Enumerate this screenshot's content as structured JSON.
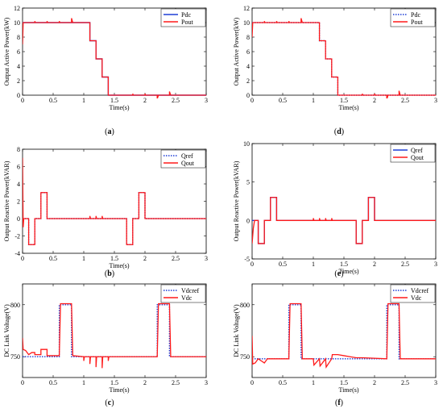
{
  "colors": {
    "ref": "#1f3fd6",
    "out": "#ff1a1a",
    "axis": "#000000",
    "frame": "#000000"
  },
  "chart_data": [
    {
      "panel": "(a)",
      "type": "line",
      "xlabel": "Time(s)",
      "ylabel": "Output Active Power(kW)",
      "xlim": [
        0,
        3
      ],
      "ylim": [
        0,
        12
      ],
      "xticks": [
        "0",
        "0.5",
        "1",
        "1.5",
        "2",
        "2.5",
        "3"
      ],
      "yticks": [
        "0",
        "2",
        "4",
        "6",
        "8",
        "10",
        "12"
      ],
      "legend": {
        "placement": "top-right"
      },
      "series": [
        {
          "name": "Pdc",
          "style": "solid",
          "color": "ref",
          "x": [
            0,
            1.1,
            1.1,
            1.2,
            1.2,
            1.3,
            1.3,
            1.4,
            1.4,
            3
          ],
          "y": [
            10,
            10,
            7.5,
            7.5,
            5,
            5,
            2.5,
            2.5,
            0,
            0
          ]
        },
        {
          "name": "Pout",
          "style": "solid",
          "color": "out",
          "x": [
            0,
            0.01,
            0.02,
            0.2,
            0.2,
            0.21,
            0.4,
            0.4,
            0.41,
            0.6,
            0.6,
            0.61,
            0.8,
            0.8,
            0.82,
            1.1,
            1.1,
            1.2,
            1.2,
            1.3,
            1.3,
            1.4,
            1.4,
            1.8,
            1.8,
            1.81,
            2.0,
            2.0,
            2.01,
            2.2,
            2.2,
            2.22,
            2.4,
            2.4,
            2.42,
            3
          ],
          "y": [
            7,
            10,
            10,
            10,
            10.2,
            10,
            10,
            10.2,
            10,
            10,
            10.2,
            10,
            10,
            10.6,
            10,
            10,
            7.5,
            7.5,
            5,
            5,
            2.5,
            2.5,
            0,
            0,
            0.2,
            0,
            0,
            0.2,
            0,
            0,
            -0.5,
            0,
            0,
            0.5,
            0,
            0
          ]
        }
      ]
    },
    {
      "panel": "(d)",
      "type": "line",
      "xlabel": "Time(s)",
      "ylabel": "Output Active Power(kW)",
      "xlim": [
        0,
        3
      ],
      "ylim": [
        0,
        12
      ],
      "xticks": [
        "0",
        "0.5",
        "1",
        "1.5",
        "2",
        "2.5",
        "3"
      ],
      "yticks": [
        "0",
        "2",
        "4",
        "6",
        "8",
        "10",
        "12"
      ],
      "legend": {
        "placement": "top-right"
      },
      "series": [
        {
          "name": "Pdc",
          "style": "dotted",
          "color": "ref",
          "x": [
            0,
            1.1,
            1.1,
            1.2,
            1.2,
            1.3,
            1.3,
            1.4,
            1.4,
            3
          ],
          "y": [
            10,
            10,
            7.5,
            7.5,
            5,
            5,
            2.5,
            2.5,
            0,
            0
          ]
        },
        {
          "name": "Pout",
          "style": "solid",
          "color": "out",
          "x": [
            0,
            0.01,
            0.02,
            0.2,
            0.2,
            0.21,
            0.4,
            0.4,
            0.41,
            0.6,
            0.6,
            0.61,
            0.8,
            0.8,
            0.82,
            1.1,
            1.1,
            1.2,
            1.2,
            1.3,
            1.3,
            1.4,
            1.4,
            1.8,
            1.8,
            1.81,
            2.0,
            2.0,
            2.01,
            2.2,
            2.2,
            2.22,
            2.4,
            2.4,
            2.42,
            3
          ],
          "y": [
            8,
            10,
            10,
            10,
            10.2,
            10,
            10,
            10.2,
            10,
            10,
            10.2,
            10,
            10,
            10.6,
            10,
            10,
            7.5,
            7.5,
            5,
            5,
            2.5,
            2.5,
            0,
            0,
            0.2,
            0,
            0,
            0.2,
            0,
            0,
            -0.6,
            0,
            0,
            0.6,
            0,
            0
          ]
        }
      ]
    },
    {
      "panel": "(b)",
      "type": "line",
      "xlabel": "Time(s)",
      "ylabel": "Output Reactive Power(kVAR)",
      "xlim": [
        0,
        3
      ],
      "ylim": [
        -4,
        8
      ],
      "xticks": [
        "0",
        "0.5",
        "1",
        "1.5",
        "2",
        "2.5",
        "3"
      ],
      "yticks": [
        "-4",
        "-2",
        "0",
        "2",
        "4",
        "6",
        "8"
      ],
      "legend": {
        "placement": "top-right"
      },
      "series": [
        {
          "name": "Qref",
          "style": "dotted",
          "color": "ref",
          "x": [
            0,
            0.1,
            0.1,
            0.2,
            0.2,
            0.3,
            0.3,
            0.4,
            0.4,
            1.7,
            1.7,
            1.8,
            1.8,
            1.9,
            1.9,
            2.0,
            2.0,
            3
          ],
          "y": [
            0,
            0,
            -3,
            -3,
            0,
            0,
            3,
            3,
            0,
            0,
            -3,
            -3,
            0,
            0,
            3,
            3,
            0,
            0
          ]
        },
        {
          "name": "Qout",
          "style": "solid",
          "color": "out",
          "x": [
            0,
            0.01,
            0.02,
            0.04,
            0.1,
            0.1,
            0.2,
            0.2,
            0.3,
            0.3,
            0.4,
            0.4,
            1.1,
            1.1,
            1.11,
            1.2,
            1.2,
            1.21,
            1.3,
            1.3,
            1.31,
            1.7,
            1.7,
            1.8,
            1.8,
            1.9,
            1.9,
            2.0,
            2.0,
            3
          ],
          "y": [
            7,
            -1,
            0,
            0,
            0,
            -3,
            -3,
            0,
            0,
            3,
            3,
            0,
            0,
            0.3,
            0,
            0,
            0.3,
            0,
            0,
            0.3,
            0,
            0,
            -3,
            -3,
            0,
            0,
            3,
            3,
            0,
            0
          ]
        }
      ]
    },
    {
      "panel": "(e)",
      "type": "line",
      "xlabel": "Time(s)",
      "ylabel": "Output Reactive Power(kVAR)",
      "xlim": [
        0,
        3
      ],
      "ylim": [
        -5,
        10
      ],
      "xticks": [
        "0",
        "0.5",
        "1",
        "1.5",
        "2",
        "2.5",
        "3"
      ],
      "yticks": [
        "-5",
        "0",
        "5",
        "10"
      ],
      "legend": {
        "placement": "top-right"
      },
      "series": [
        {
          "name": "Qref",
          "style": "solid",
          "color": "ref",
          "x": [
            0,
            0.1,
            0.1,
            0.2,
            0.2,
            0.3,
            0.3,
            0.4,
            0.4,
            1.7,
            1.7,
            1.8,
            1.8,
            1.9,
            1.9,
            2.0,
            2.0,
            3
          ],
          "y": [
            0,
            0,
            -3,
            -3,
            0,
            0,
            3,
            3,
            0,
            0,
            -3,
            -3,
            0,
            0,
            3,
            3,
            0,
            0
          ]
        },
        {
          "name": "Qout",
          "style": "solid",
          "color": "out",
          "x": [
            0,
            0.02,
            0.04,
            0.1,
            0.1,
            0.2,
            0.2,
            0.3,
            0.3,
            0.4,
            0.4,
            1.0,
            1.0,
            1.01,
            1.1,
            1.1,
            1.11,
            1.2,
            1.2,
            1.21,
            1.3,
            1.3,
            1.31,
            1.7,
            1.7,
            1.8,
            1.8,
            1.9,
            1.9,
            2.0,
            2.0,
            3
          ],
          "y": [
            -3,
            -1,
            0,
            0,
            -3,
            -3,
            0,
            0,
            3,
            3,
            0,
            0,
            0.3,
            0,
            0,
            0.3,
            0,
            0,
            0.3,
            0,
            0,
            0.3,
            0,
            0,
            -3,
            -3,
            0,
            0,
            3,
            3,
            0,
            0
          ]
        }
      ]
    },
    {
      "panel": "(c)",
      "type": "line",
      "xlabel": "Time(s)",
      "ylabel": "DC Link Voltage(V)",
      "xlim": [
        0,
        3
      ],
      "ylim": [
        730,
        820
      ],
      "xticks": [
        "0",
        "0.5",
        "1",
        "1.5",
        "2",
        "2.5",
        "3"
      ],
      "yticks": [
        "750",
        "800"
      ],
      "legend": {
        "placement": "top-right"
      },
      "series": [
        {
          "name": "Vdcref",
          "style": "dotted",
          "color": "ref",
          "x": [
            0,
            0.6,
            0.6,
            0.8,
            0.8,
            2.2,
            2.2,
            2.4,
            2.4,
            3
          ],
          "y": [
            750,
            750,
            800,
            800,
            750,
            750,
            800,
            800,
            750,
            750
          ]
        },
        {
          "name": "Vdc",
          "style": "solid",
          "color": "out",
          "x": [
            0,
            0.01,
            0.05,
            0.1,
            0.15,
            0.2,
            0.2,
            0.3,
            0.3,
            0.4,
            0.4,
            0.6,
            0.62,
            0.8,
            0.82,
            1.0,
            1.0,
            1.01,
            1.1,
            1.1,
            1.11,
            1.2,
            1.2,
            1.21,
            1.3,
            1.3,
            1.31,
            1.4,
            1.4,
            1.41,
            2.2,
            2.22,
            2.4,
            2.42,
            3
          ],
          "y": [
            768,
            757,
            756,
            752,
            754,
            754,
            752,
            752,
            757,
            757,
            751,
            751,
            801,
            801,
            751,
            750,
            746,
            750,
            750,
            743,
            750,
            750,
            740,
            750,
            750,
            739,
            750,
            750,
            746,
            750,
            750,
            801,
            801,
            750,
            750
          ]
        }
      ]
    },
    {
      "panel": "(f)",
      "type": "line",
      "xlabel": "Time(s)",
      "ylabel": "DC Link Voltage(V)",
      "xlim": [
        0,
        3
      ],
      "ylim": [
        730,
        820
      ],
      "xticks": [
        "0",
        "0.5",
        "1",
        "1.5",
        "2",
        "2.5",
        "3"
      ],
      "yticks": [
        "750",
        "800"
      ],
      "legend": {
        "placement": "top-right"
      },
      "series": [
        {
          "name": "Vdcref",
          "style": "dotted",
          "color": "ref",
          "x": [
            0,
            0.6,
            0.6,
            0.8,
            0.8,
            2.2,
            2.2,
            2.4,
            2.4,
            3
          ],
          "y": [
            748,
            748,
            800,
            800,
            748,
            748,
            800,
            800,
            748,
            748
          ]
        },
        {
          "name": "Vdc",
          "style": "solid",
          "color": "out",
          "x": [
            0,
            0.01,
            0.05,
            0.1,
            0.15,
            0.2,
            0.25,
            0.3,
            0.6,
            0.62,
            0.8,
            0.82,
            1.0,
            1.01,
            1.1,
            1.11,
            1.2,
            1.21,
            1.3,
            1.31,
            1.4,
            1.5,
            1.6,
            1.7,
            1.8,
            2.2,
            2.22,
            2.4,
            2.42,
            3
          ],
          "y": [
            770,
            743,
            744,
            748,
            746,
            744,
            748,
            748,
            748,
            801,
            801,
            748,
            748,
            742,
            748,
            741,
            748,
            740,
            748,
            752,
            752,
            751,
            750,
            749,
            749,
            748,
            801,
            801,
            748,
            748
          ]
        }
      ]
    }
  ]
}
